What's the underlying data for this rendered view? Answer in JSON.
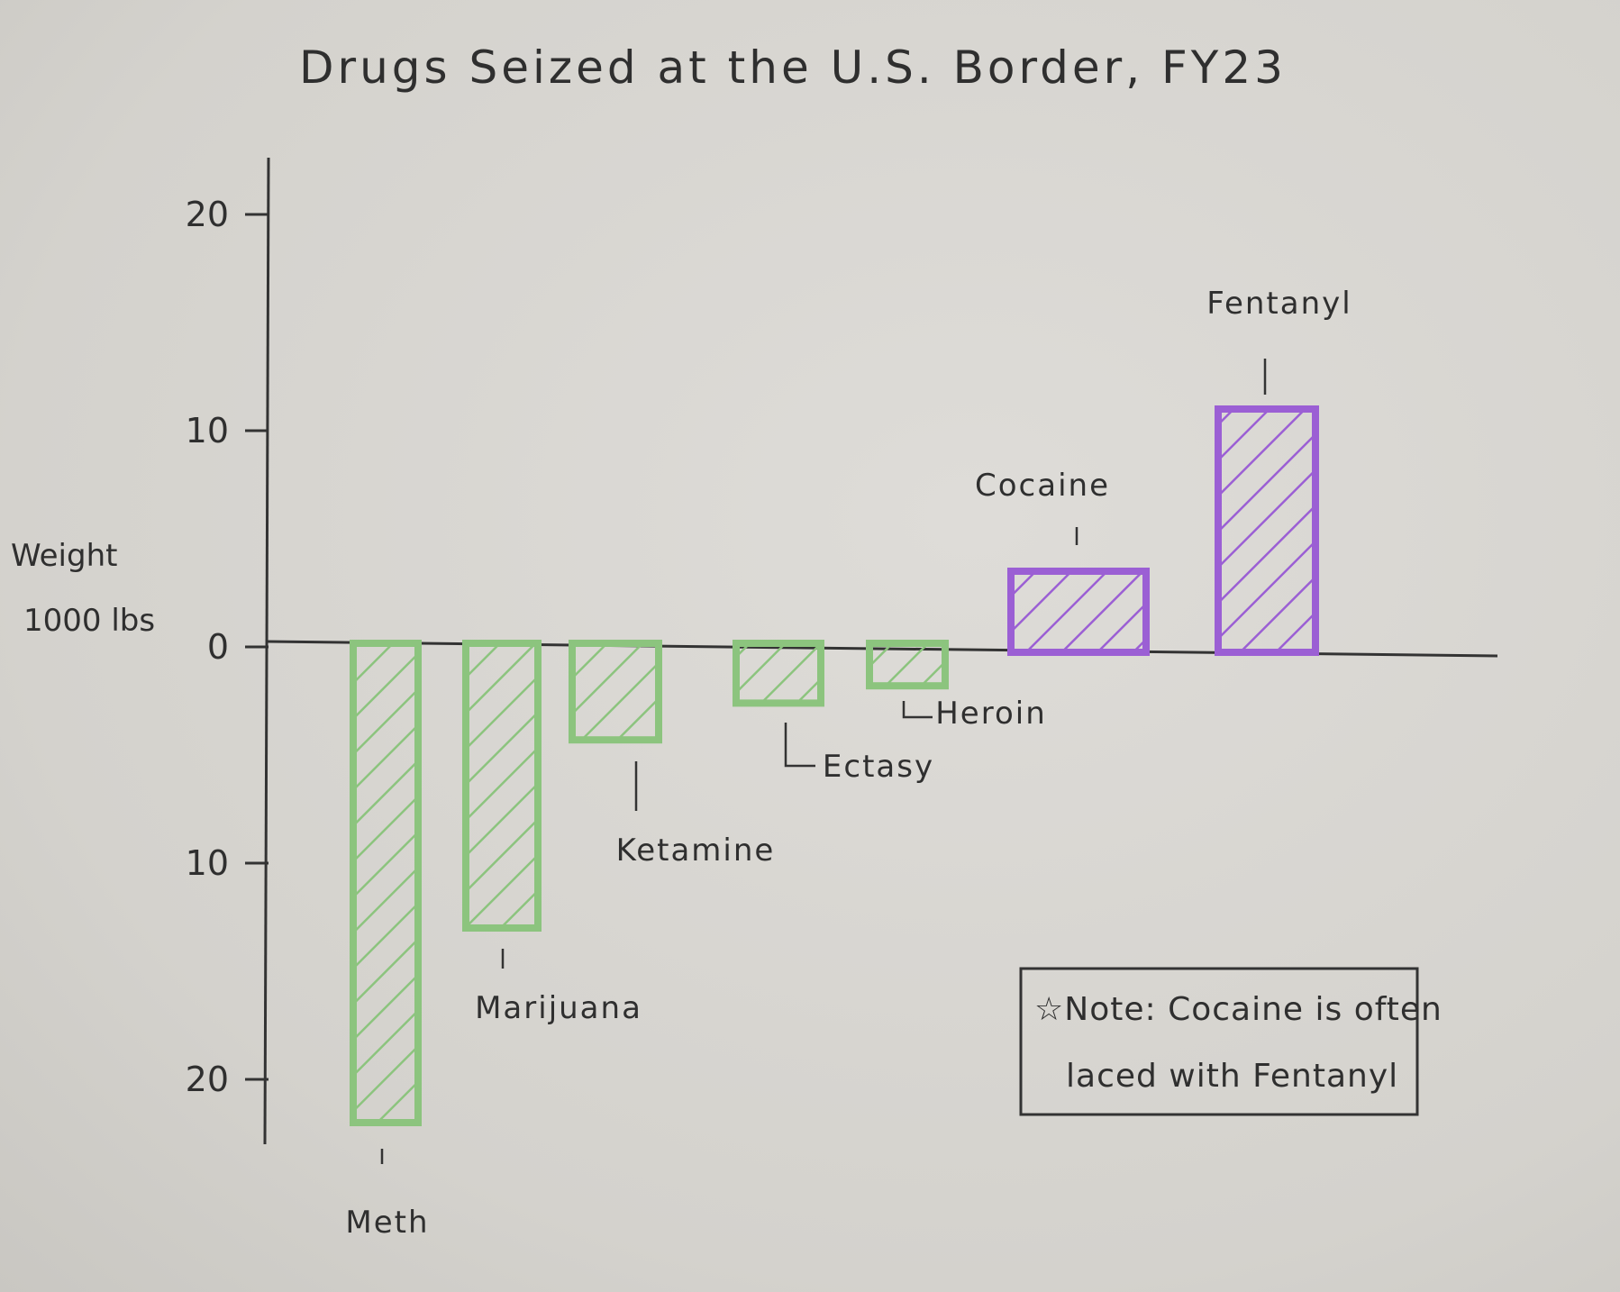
{
  "chart_data": {
    "type": "bar",
    "title": "Drugs Seized at the U.S. Border, FY23",
    "ylabel": [
      "Weight",
      "1000 lbs"
    ],
    "ylim": [
      -22,
      22
    ],
    "yticks": [
      {
        "value": 20,
        "label": "20"
      },
      {
        "value": 10,
        "label": "10"
      },
      {
        "value": 0,
        "label": "0"
      },
      {
        "value": -10,
        "label": "10"
      },
      {
        "value": -20,
        "label": "20"
      }
    ],
    "categories": [
      "Meth",
      "Marijuana",
      "Ketamine",
      "Ectasy",
      "Heroin",
      "Cocaine",
      "Fentanyl"
    ],
    "values": [
      -22,
      -13,
      -4.3,
      -2.6,
      -1.8,
      3.5,
      11
    ],
    "colors": {
      "negative": "#8cc47e",
      "positive": "#9b5fd4",
      "axis": "#333333"
    },
    "note": {
      "line1": "☆Note: Cocaine is often",
      "line2": "laced with Fentanyl"
    },
    "grid": false,
    "legend": "none"
  }
}
